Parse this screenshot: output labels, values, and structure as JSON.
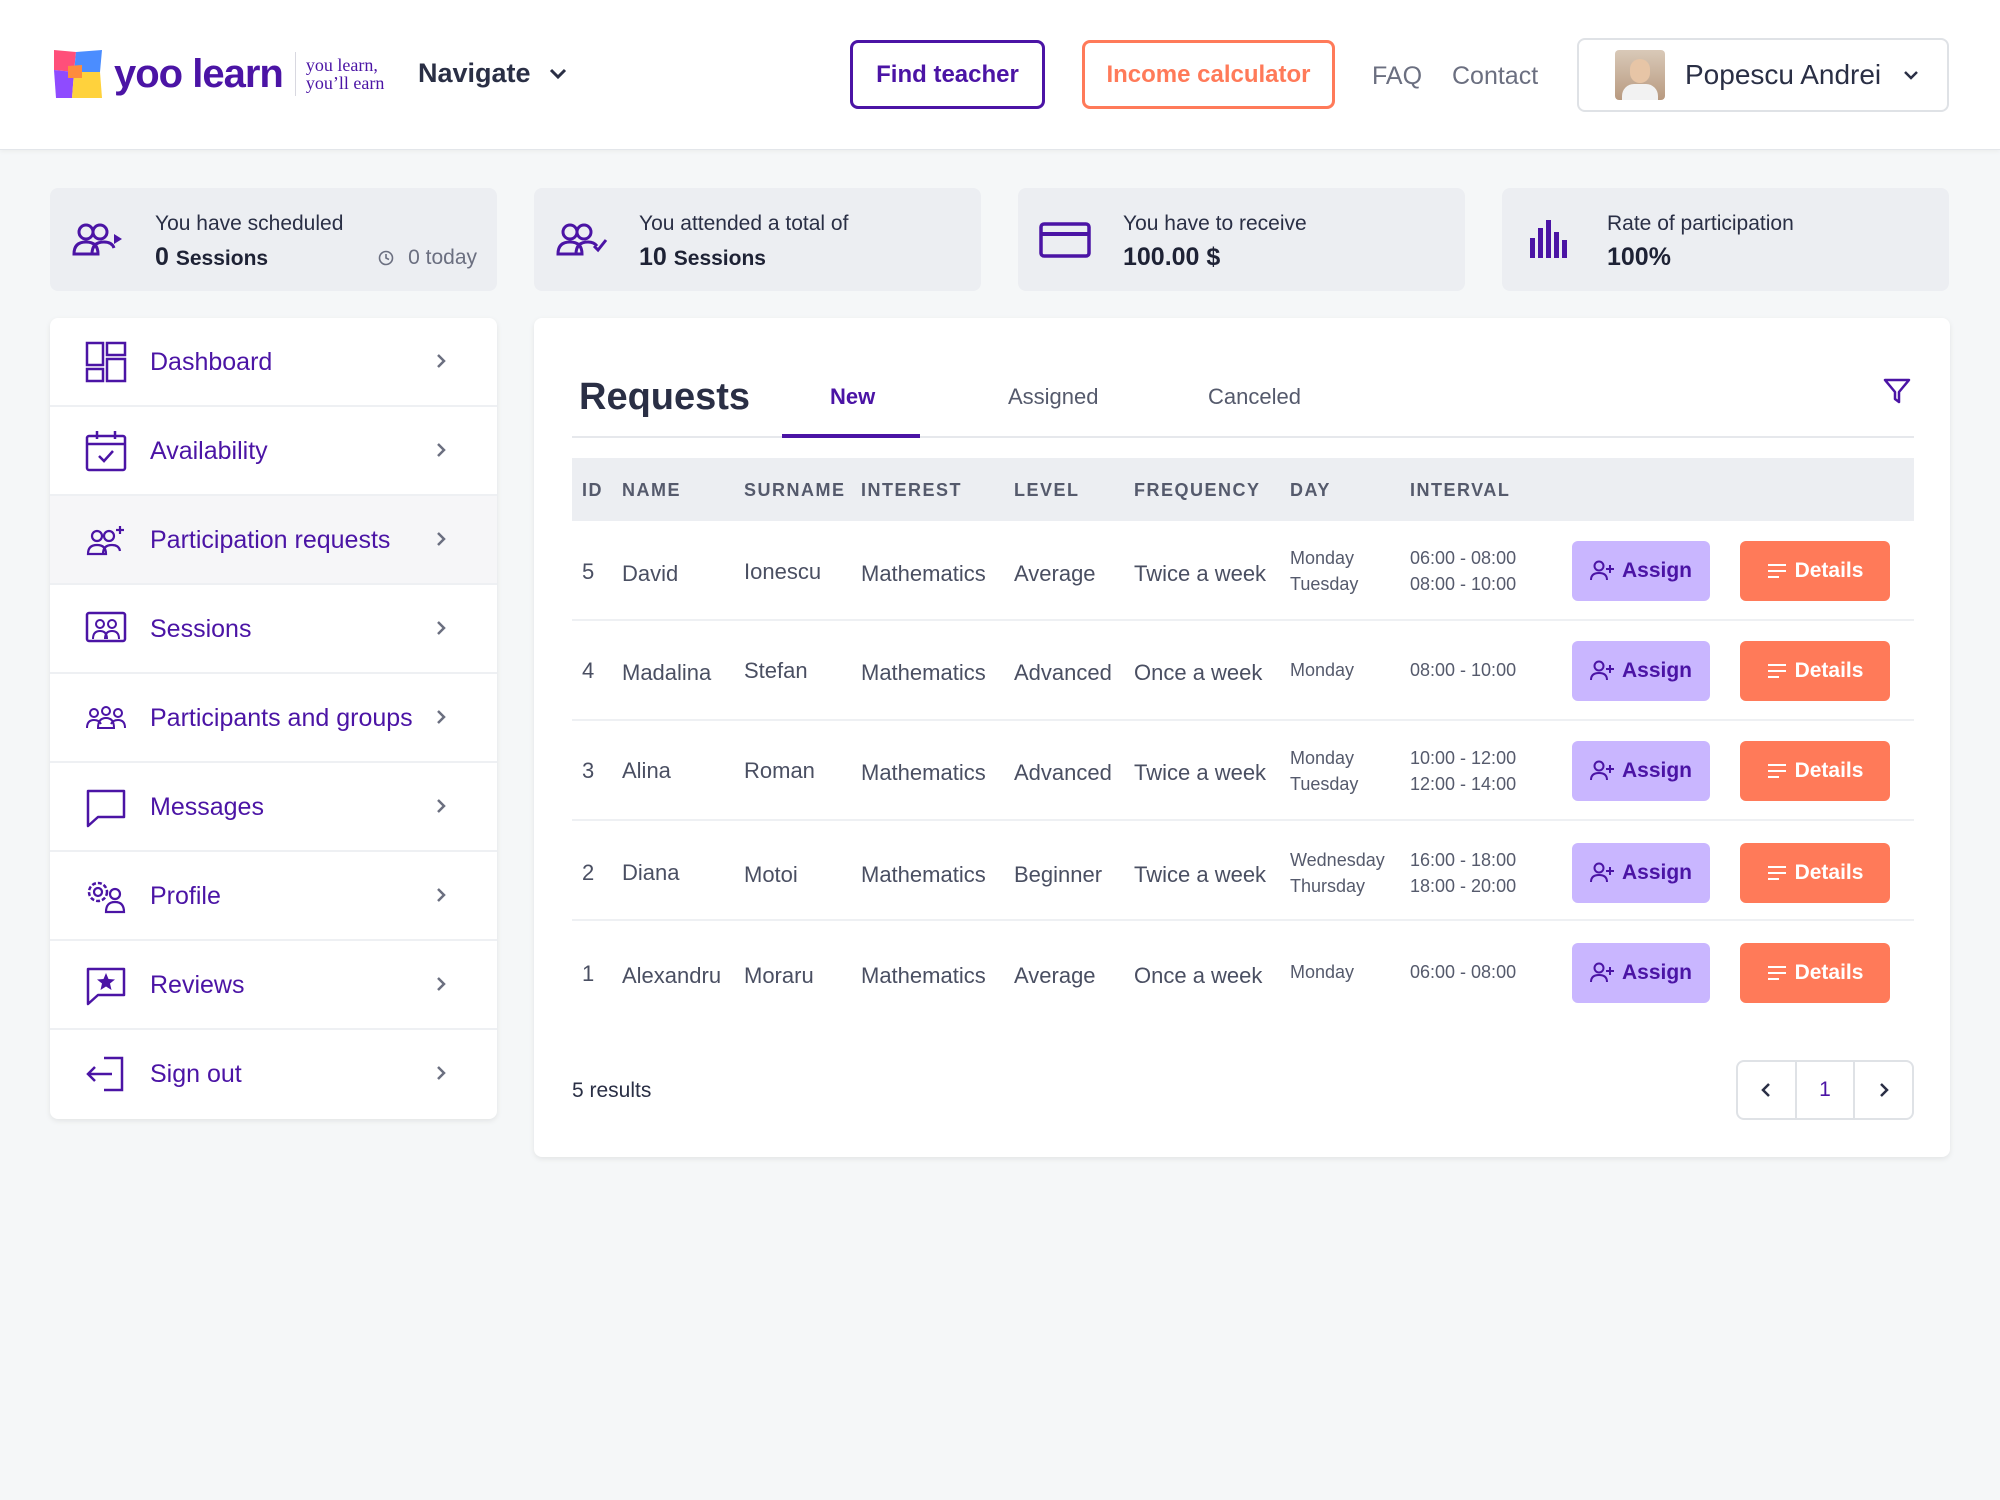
{
  "header": {
    "logo_text": "yoo learn",
    "logo_tag_1": "you learn,",
    "logo_tag_2": "you’ll earn",
    "navigate_label": "Navigate",
    "find_teacher_label": "Find teacher",
    "income_calculator_label": "Income calculator",
    "faq_label": "FAQ",
    "contact_label": "Contact",
    "user_name": "Popescu Andrei"
  },
  "stats": [
    {
      "label": "You have scheduled",
      "value": "0",
      "unit": "Sessions",
      "today": "0 today",
      "icon": "scheduled-users-icon"
    },
    {
      "label": "You attended a total of",
      "value": "10",
      "unit": "Sessions",
      "icon": "attended-users-icon"
    },
    {
      "label": "You have to receive",
      "value": "100.00 $",
      "icon": "credit-card-icon"
    },
    {
      "label": "Rate of participation",
      "value": "100%",
      "icon": "bar-chart-icon"
    }
  ],
  "sidebar": {
    "items": [
      {
        "label": "Dashboard",
        "icon": "dashboard-icon"
      },
      {
        "label": "Availability",
        "icon": "calendar-check-icon"
      },
      {
        "label": "Participation requests",
        "icon": "user-plus-group-icon"
      },
      {
        "label": "Sessions",
        "icon": "sessions-icon"
      },
      {
        "label": "Participants and groups",
        "icon": "group-icon"
      },
      {
        "label": "Messages",
        "icon": "message-icon"
      },
      {
        "label": "Profile",
        "icon": "profile-gear-icon"
      },
      {
        "label": "Reviews",
        "icon": "star-message-icon"
      },
      {
        "label": "Sign out",
        "icon": "sign-out-icon"
      }
    ]
  },
  "requests": {
    "title": "Requests",
    "tabs": [
      "New",
      "Assigned",
      "Canceled"
    ],
    "columns": [
      "ID",
      "NAME",
      "SURNAME",
      "INTEREST",
      "LEVEL",
      "FREQUENCY",
      "DAY",
      "INTERVAL"
    ],
    "rows": [
      {
        "id": "5",
        "name": "David",
        "surname": "Ionescu",
        "interest": "Mathematics",
        "level": "Average",
        "frequency": "Twice a week",
        "day1": "Monday",
        "day2": "Tuesday",
        "int1": "06:00 - 08:00",
        "int2": "08:00 - 10:00"
      },
      {
        "id": "4",
        "name": "Madalina",
        "surname": "Stefan",
        "interest": "Mathematics",
        "level": "Advanced",
        "frequency": "Once a week",
        "day1": "Monday",
        "day2": "",
        "int1": "08:00 - 10:00",
        "int2": ""
      },
      {
        "id": "3",
        "name": "Alina",
        "surname": "Roman",
        "interest": "Mathematics",
        "level": "Advanced",
        "frequency": "Twice a week",
        "day1": "Monday",
        "day2": "Tuesday",
        "int1": "10:00 - 12:00",
        "int2": "12:00 - 14:00"
      },
      {
        "id": "2",
        "name": "Diana",
        "surname": "Motoi",
        "interest": "Mathematics",
        "level": "Beginner",
        "frequency": "Twice a week",
        "day1": "Wednesday",
        "day2": "Thursday",
        "int1": "16:00 - 18:00",
        "int2": "18:00 - 20:00"
      },
      {
        "id": "1",
        "name": "Alexandru",
        "surname": "Moraru",
        "interest": "Mathematics",
        "level": "Average",
        "frequency": "Once a week",
        "day1": "Monday",
        "day2": "",
        "int1": "06:00 - 08:00",
        "int2": ""
      }
    ],
    "assign_label": "Assign",
    "details_label": "Details",
    "results_label": "5 results",
    "current_page": "1"
  },
  "colors": {
    "brand_purple": "#4b14a5",
    "accent_orange": "#ff7a59",
    "assign_bg": "#c9b6ff"
  }
}
